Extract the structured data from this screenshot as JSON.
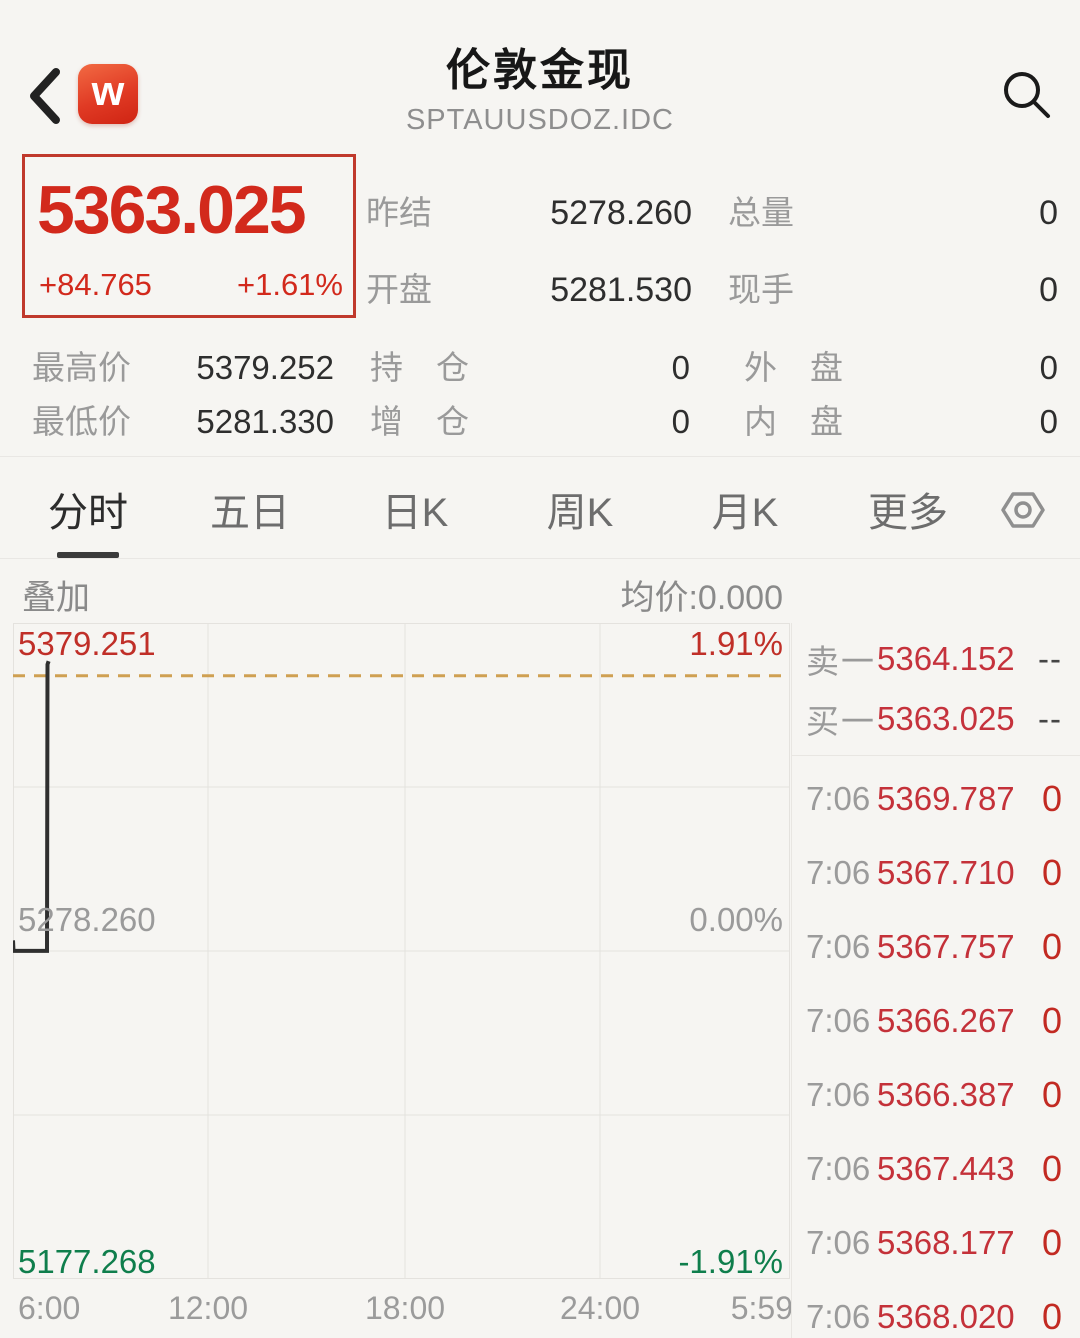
{
  "header": {
    "title": "伦敦金现",
    "subtitle": "SPTAUUSDOZ.IDC",
    "logo_text": "w"
  },
  "quote": {
    "last_price": "5363.025",
    "change": "+84.765",
    "change_pct": "+1.61%",
    "prev_close_label": "昨结",
    "prev_close": "5278.260",
    "total_vol_label": "总量",
    "total_vol": "0",
    "open_label": "开盘",
    "open": "5281.530",
    "cur_vol_label": "现手",
    "cur_vol": "0",
    "high_label": "最高价",
    "high": "5379.252",
    "oi_label": "持　仓",
    "oi": "0",
    "outer_label": "外　盘",
    "outer": "0",
    "low_label": "最低价",
    "low": "5281.330",
    "oi_chg_label": "增　仓",
    "oi_chg": "0",
    "inner_label": "内　盘",
    "inner": "0"
  },
  "tabs": [
    {
      "label": "分时",
      "active": true
    },
    {
      "label": "五日",
      "active": false
    },
    {
      "label": "日K",
      "active": false
    },
    {
      "label": "周K",
      "active": false
    },
    {
      "label": "月K",
      "active": false
    },
    {
      "label": "更多",
      "active": false
    }
  ],
  "chart_data": {
    "type": "line",
    "overlay_label": "叠加",
    "avg_price_label": "均价:0.000",
    "minutes_after_0600": [
      0,
      1,
      63,
      64,
      66
    ],
    "prices": [
      5281.53,
      5278.3,
      5278.3,
      5366.5,
      5367.5
    ],
    "x_span_minutes": 1440,
    "ylim": [
      5177.268,
      5379.251
    ],
    "baseline_prev_close": 5278.26,
    "current_price": 5363.025,
    "labels": {
      "y_top": "5379.251",
      "pct_top": "1.91%",
      "y_mid": "5278.260",
      "pct_mid": "0.00%",
      "y_bottom": "5177.268",
      "pct_bottom": "-1.91%"
    },
    "x_ticks": [
      "6:00",
      "12:00",
      "18:00",
      "24:00",
      "5:59"
    ],
    "grid": true,
    "line_color": "#2f2f2f",
    "current_price_dash_color": "#cfa052",
    "up_color": "#c02f28",
    "down_color": "#0f7e4c"
  },
  "order_book": {
    "ask_label": "卖一",
    "ask_price": "5364.152",
    "ask_vol": "--",
    "bid_label": "买一",
    "bid_price": "5363.025",
    "bid_vol": "--"
  },
  "trades": [
    {
      "time": "7:06",
      "price": "5369.787",
      "vol": "0"
    },
    {
      "time": "7:06",
      "price": "5367.710",
      "vol": "0"
    },
    {
      "time": "7:06",
      "price": "5367.757",
      "vol": "0"
    },
    {
      "time": "7:06",
      "price": "5366.267",
      "vol": "0"
    },
    {
      "time": "7:06",
      "price": "5366.387",
      "vol": "0"
    },
    {
      "time": "7:06",
      "price": "5367.443",
      "vol": "0"
    },
    {
      "time": "7:06",
      "price": "5368.177",
      "vol": "0"
    },
    {
      "time": "7:06",
      "price": "5368.020",
      "vol": "0"
    }
  ],
  "colors": {
    "accent_red": "#d2291c",
    "panel_red": "#c43139",
    "green": "#0f7e4c",
    "dash_orange": "#cfa052"
  }
}
